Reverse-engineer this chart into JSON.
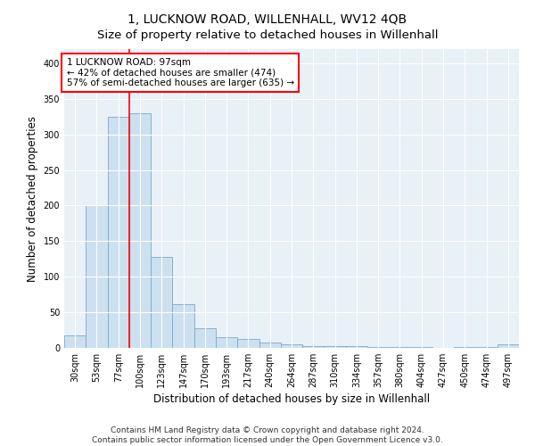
{
  "title": "1, LUCKNOW ROAD, WILLENHALL, WV12 4QB",
  "subtitle": "Size of property relative to detached houses in Willenhall",
  "xlabel": "Distribution of detached houses by size in Willenhall",
  "ylabel": "Number of detached properties",
  "categories": [
    "30sqm",
    "53sqm",
    "77sqm",
    "100sqm",
    "123sqm",
    "147sqm",
    "170sqm",
    "193sqm",
    "217sqm",
    "240sqm",
    "264sqm",
    "287sqm",
    "310sqm",
    "334sqm",
    "357sqm",
    "380sqm",
    "404sqm",
    "427sqm",
    "450sqm",
    "474sqm",
    "497sqm"
  ],
  "values": [
    18,
    200,
    325,
    330,
    128,
    62,
    27,
    15,
    12,
    8,
    5,
    3,
    2,
    2,
    1,
    1,
    1,
    0,
    1,
    1,
    5
  ],
  "bar_color": "#cce0f0",
  "bar_edge_color": "#7aaac8",
  "property_line_index": 3,
  "property_label": "1 LUCKNOW ROAD: 97sqm",
  "annotation_line1": "← 42% of detached houses are smaller (474)",
  "annotation_line2": "57% of semi-detached houses are larger (635) →",
  "annotation_box_color": "white",
  "annotation_box_edge_color": "red",
  "vline_color": "red",
  "ylim": [
    0,
    420
  ],
  "yticks": [
    0,
    50,
    100,
    150,
    200,
    250,
    300,
    350,
    400
  ],
  "footer_line1": "Contains HM Land Registry data © Crown copyright and database right 2024.",
  "footer_line2": "Contains public sector information licensed under the Open Government Licence v3.0.",
  "background_color": "#ffffff",
  "plot_background_color": "#e8f0f8",
  "title_fontsize": 10,
  "subtitle_fontsize": 9.5,
  "axis_label_fontsize": 8.5,
  "tick_fontsize": 7,
  "footer_fontsize": 6.5,
  "annotation_fontsize": 7.5
}
